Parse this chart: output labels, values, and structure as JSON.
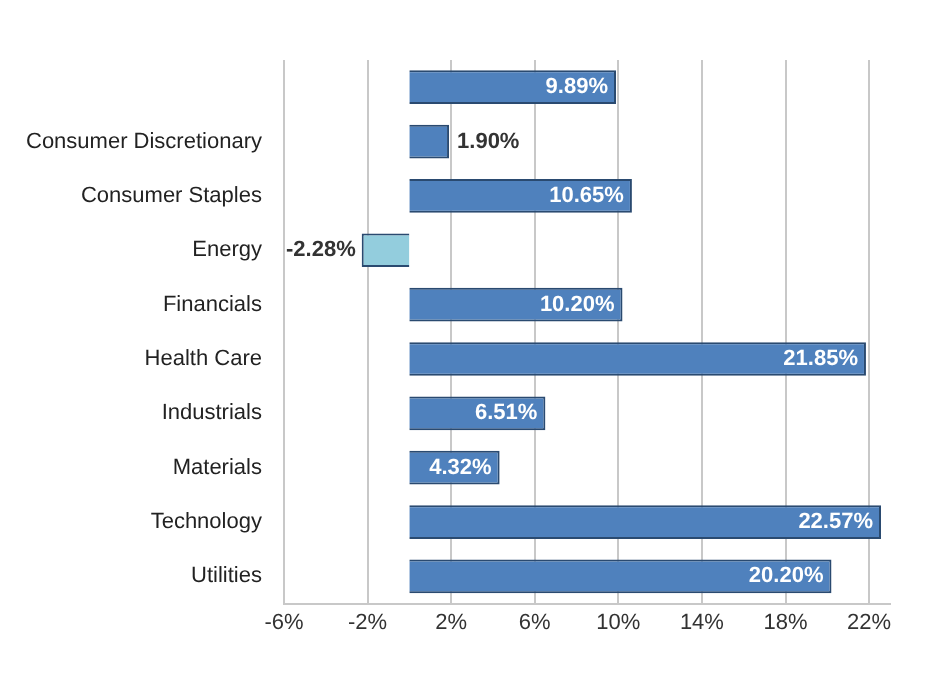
{
  "chart_data": {
    "type": "bar",
    "orientation": "horizontal",
    "categories": [
      null,
      "Consumer Discretionary",
      "Consumer Staples",
      "Energy",
      "Financials",
      "Health Care",
      "Industrials",
      "Materials",
      "Technology",
      "Utilities"
    ],
    "values": [
      9.89,
      1.9,
      10.65,
      -2.28,
      10.2,
      21.85,
      6.51,
      4.32,
      22.57,
      20.2
    ],
    "colors": [
      "#4f81bd",
      "#4f81bd",
      "#4f81bd",
      "#93cddd",
      "#4f81bd",
      "#4f81bd",
      "#4f81bd",
      "#4f81bd",
      "#4f81bd",
      "#4f81bd"
    ],
    "value_labels": [
      "9.89%",
      "1.90%",
      "10.65%",
      "-2.28%",
      "10.20%",
      "21.85%",
      "6.51%",
      "4.32%",
      "22.57%",
      "20.20%"
    ],
    "xlim": [
      -6,
      23
    ],
    "xticks": [
      {
        "value": -6,
        "label": "-6%"
      },
      {
        "value": -2,
        "label": "-2%"
      },
      {
        "value": 2,
        "label": "2%"
      },
      {
        "value": 6,
        "label": "6%"
      },
      {
        "value": 10,
        "label": "10%"
      },
      {
        "value": 14,
        "label": "14%"
      },
      {
        "value": 18,
        "label": "18%"
      },
      {
        "value": 22,
        "label": "22%"
      }
    ],
    "grid": "x",
    "legend": false
  }
}
